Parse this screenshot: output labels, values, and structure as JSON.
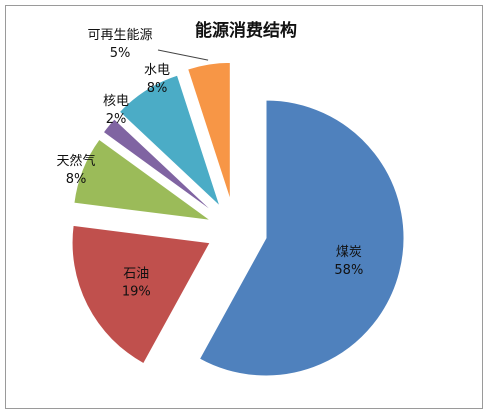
{
  "chart_data": {
    "type": "pie",
    "title": "能源消费结构",
    "slices": [
      {
        "label": "煤炭",
        "value": 58,
        "value_label": "58%",
        "color": "#4F81BD"
      },
      {
        "label": "石油",
        "value": 19,
        "value_label": "19%",
        "color": "#C0504D"
      },
      {
        "label": "天然气",
        "value": 8,
        "value_label": "8%",
        "color": "#9BBB59"
      },
      {
        "label": "核电",
        "value": 2,
        "value_label": "2%",
        "color": "#8064A2"
      },
      {
        "label": "水电",
        "value": 8,
        "value_label": "8%",
        "color": "#4BACC6"
      },
      {
        "label": "可再生能源",
        "value": 5,
        "value_label": "5%",
        "color": "#F79646"
      }
    ],
    "exploded": true,
    "legend": "none"
  }
}
